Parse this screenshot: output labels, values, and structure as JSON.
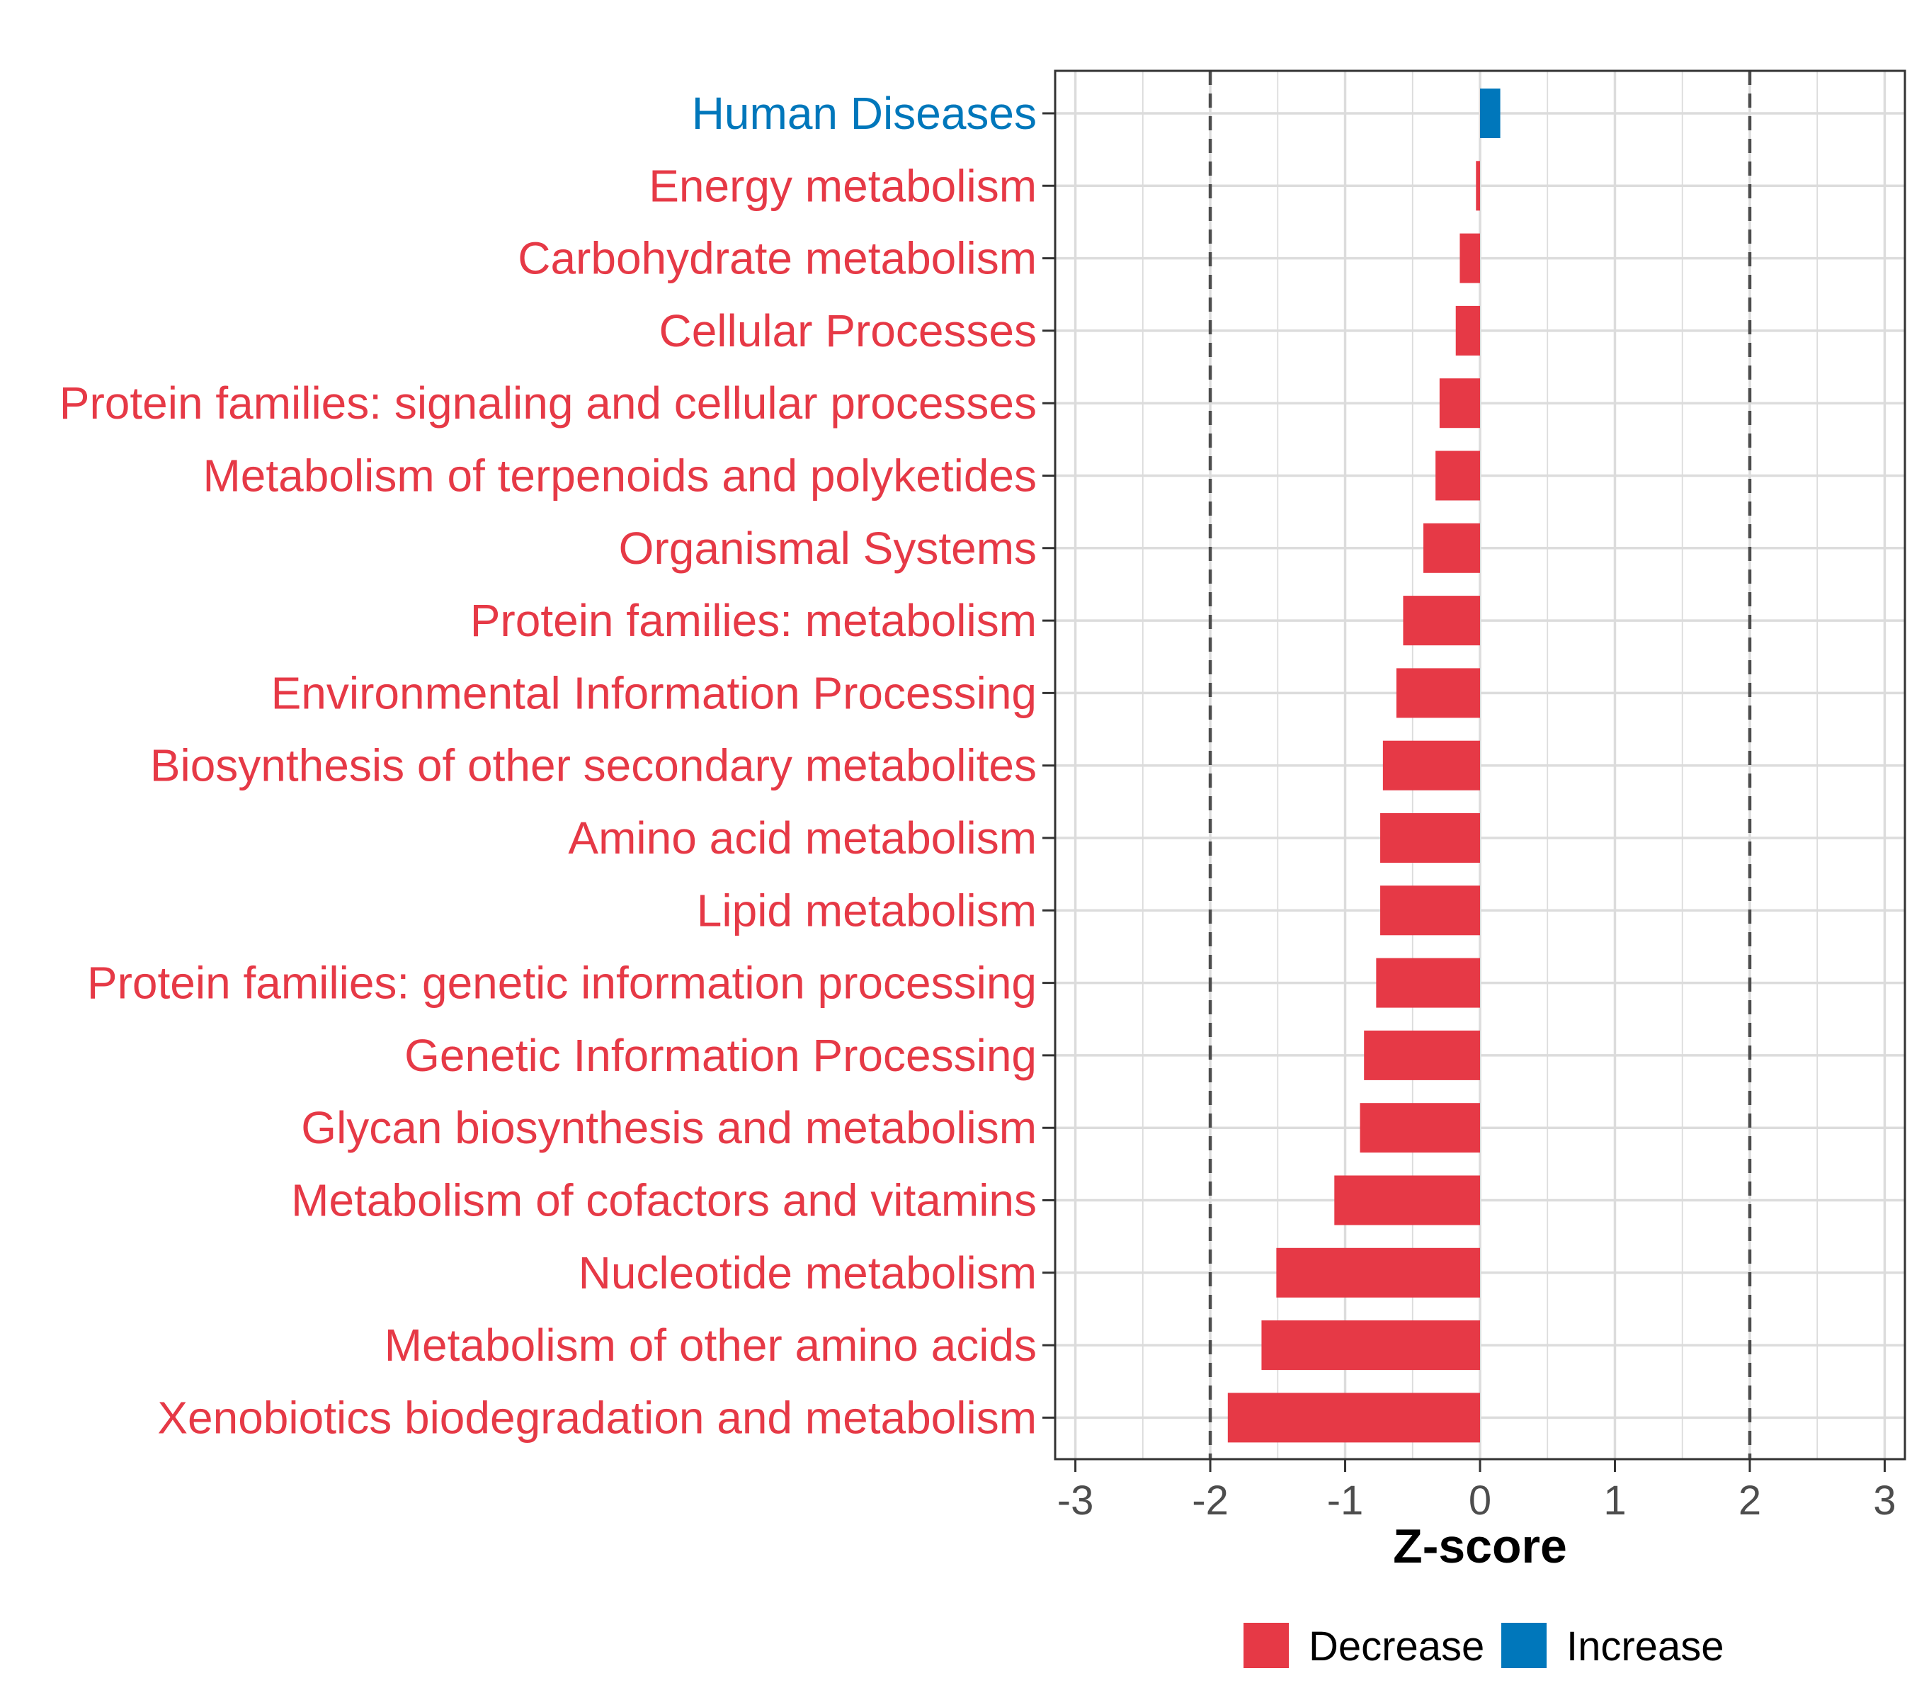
{
  "chart_data": {
    "type": "bar",
    "orientation": "horizontal",
    "title": "",
    "xlabel": "Z-score",
    "ylabel": "",
    "xlim": [
      -3.15,
      3.15
    ],
    "xticks": [
      -3,
      -2,
      -1,
      0,
      1,
      2,
      3
    ],
    "xtick_labels": [
      "-3",
      "-2",
      "-1",
      "0",
      "1",
      "2",
      "3"
    ],
    "reference_lines": [
      -2,
      2
    ],
    "grid": true,
    "categories": [
      "Human Diseases",
      "Energy metabolism",
      "Carbohydrate metabolism",
      "Cellular Processes",
      "Protein families: signaling and cellular processes",
      "Metabolism of terpenoids and polyketides",
      "Organismal Systems",
      "Protein families: metabolism",
      "Environmental Information Processing",
      "Biosynthesis of other secondary metabolites",
      "Amino acid metabolism",
      "Lipid metabolism",
      "Protein families: genetic information processing",
      "Genetic Information Processing",
      "Glycan biosynthesis and metabolism",
      "Metabolism of cofactors and vitamins",
      "Nucleotide metabolism",
      "Metabolism of other amino acids",
      "Xenobiotics biodegradation and metabolism"
    ],
    "values": [
      0.15,
      -0.03,
      -0.15,
      -0.18,
      -0.3,
      -0.33,
      -0.42,
      -0.57,
      -0.62,
      -0.72,
      -0.74,
      -0.74,
      -0.77,
      -0.86,
      -0.89,
      -1.08,
      -1.51,
      -1.62,
      -1.87
    ],
    "legend": {
      "placement": "bottom",
      "entries": [
        {
          "label": "Decrease",
          "color": "#e63946"
        },
        {
          "label": "Increase",
          "color": "#0077bb"
        }
      ]
    },
    "colors": {
      "decrease": "#e63946",
      "increase": "#0077bb",
      "grid": "#dcdcdc",
      "reference_line": "#4d4d4d",
      "panel_border": "#333333"
    }
  }
}
